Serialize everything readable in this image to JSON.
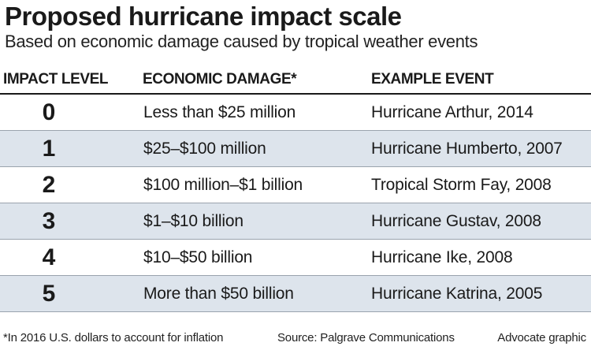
{
  "title": "Proposed hurricane impact scale",
  "subtitle": "Based on economic damage caused by tropical weather events",
  "headers": {
    "level": "IMPACT LEVEL",
    "damage": "ECONOMIC DAMAGE*",
    "example": "EXAMPLE EVENT"
  },
  "rows": [
    {
      "level": "0",
      "damage": "Less than $25 million",
      "example": "Hurricane Arthur, 2014"
    },
    {
      "level": "1",
      "damage": "$25–$100 million",
      "example": "Hurricane Humberto, 2007"
    },
    {
      "level": "2",
      "damage": "$100 million–$1 billion",
      "example": "Tropical Storm Fay, 2008"
    },
    {
      "level": "3",
      "damage": "$1–$10 billion",
      "example": "Hurricane Gustav, 2008"
    },
    {
      "level": "4",
      "damage": "$10–$50 billion",
      "example": "Hurricane Ike, 2008"
    },
    {
      "level": "5",
      "damage": "More than $50 billion",
      "example": "Hurricane Katrina, 2005"
    }
  ],
  "footer": {
    "note": "*In 2016 U.S. dollars to account for inflation",
    "source": "Source: Palgrave Communications",
    "credit": "Advocate graphic"
  },
  "colors": {
    "shaded_row": "#dde4ec",
    "text": "#1a1a1a"
  }
}
